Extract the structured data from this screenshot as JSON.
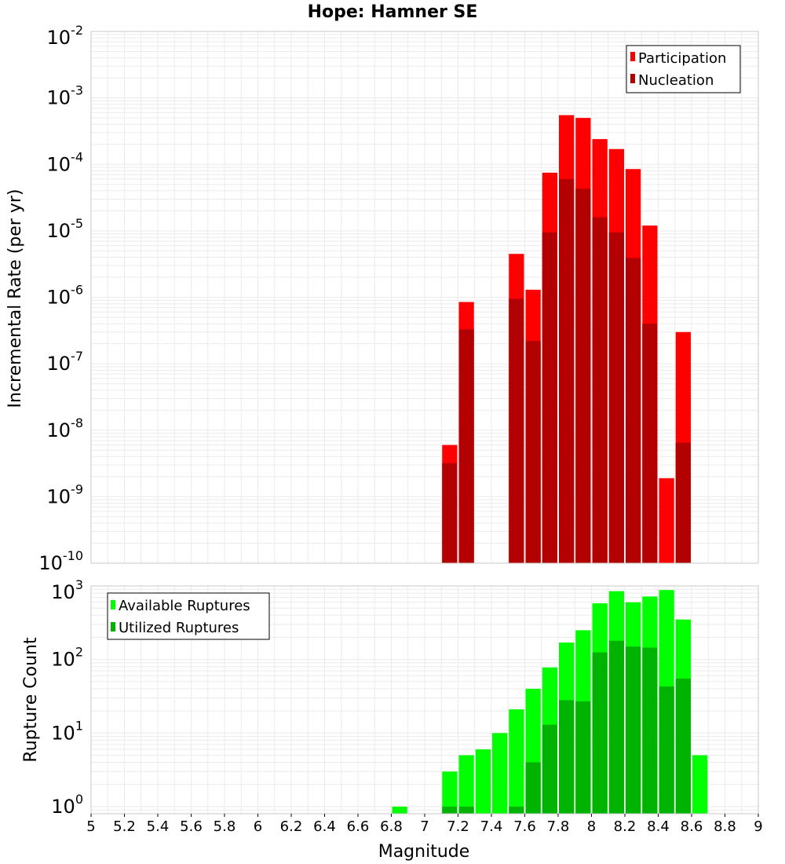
{
  "chart_data": [
    {
      "type": "bar",
      "title": "Hope: Hamner SE",
      "ylabel": "Incremental Rate (per yr)",
      "xlabel": "",
      "xlim": [
        5,
        9
      ],
      "ylim": [
        1e-10,
        0.01
      ],
      "yscale": "log",
      "legend": {
        "position": "top-right",
        "entries": [
          "Participation",
          "Nucleation"
        ]
      },
      "colors": {
        "Participation": "#ff0000",
        "Nucleation": "#b30000"
      },
      "bin_width": 0.1,
      "series": [
        {
          "name": "Participation",
          "x": [
            7.15,
            7.25,
            7.55,
            7.65,
            7.75,
            7.85,
            7.95,
            8.05,
            8.15,
            8.25,
            8.35,
            8.45,
            8.55
          ],
          "values": [
            6e-09,
            8.5e-07,
            4.5e-06,
            1.3e-06,
            7.5e-05,
            0.00055,
            0.0005,
            0.00024,
            0.00017,
            8.5e-05,
            1.2e-05,
            1.9e-09,
            3e-07
          ]
        },
        {
          "name": "Nucleation",
          "x": [
            7.15,
            7.25,
            7.55,
            7.65,
            7.75,
            7.85,
            7.95,
            8.05,
            8.15,
            8.25,
            8.35,
            8.45,
            8.55
          ],
          "values": [
            3.2e-09,
            3.3e-07,
            9.5e-07,
            2.2e-07,
            9.5e-06,
            6e-05,
            4.3e-05,
            1.6e-05,
            9.5e-06,
            3.9e-06,
            4e-07,
            null,
            6.5e-09
          ]
        }
      ],
      "yticks": [
        {
          "base": "10",
          "exp": "-2"
        },
        {
          "base": "10",
          "exp": "-3"
        },
        {
          "base": "10",
          "exp": "-4"
        },
        {
          "base": "10",
          "exp": "-5"
        },
        {
          "base": "10",
          "exp": "-6"
        },
        {
          "base": "10",
          "exp": "-7"
        },
        {
          "base": "10",
          "exp": "-8"
        },
        {
          "base": "10",
          "exp": "-9"
        },
        {
          "base": "10",
          "exp": "-10"
        }
      ]
    },
    {
      "type": "bar",
      "title": "",
      "ylabel": "Rupture Count",
      "xlabel": "Magnitude",
      "xlim": [
        5,
        9
      ],
      "ylim": [
        0.8,
        1000
      ],
      "yscale": "log",
      "legend": {
        "position": "top-left",
        "entries": [
          "Available Ruptures",
          "Utilized Ruptures"
        ]
      },
      "colors": {
        "Available Ruptures": "#00ff00",
        "Utilized Ruptures": "#00b300"
      },
      "bin_width": 0.1,
      "series": [
        {
          "name": "Available Ruptures",
          "x": [
            6.85,
            7.15,
            7.25,
            7.35,
            7.45,
            7.55,
            7.65,
            7.75,
            7.85,
            7.95,
            8.05,
            8.15,
            8.25,
            8.35,
            8.45,
            8.55,
            8.65
          ],
          "values": [
            1,
            3,
            5,
            6,
            10,
            21,
            40,
            78,
            170,
            250,
            580,
            850,
            600,
            720,
            880,
            350,
            5
          ]
        },
        {
          "name": "Utilized Ruptures",
          "x": [
            7.15,
            7.25,
            7.55,
            7.65,
            7.75,
            7.85,
            7.95,
            8.05,
            8.15,
            8.25,
            8.35,
            8.45,
            8.55
          ],
          "values": [
            1,
            1,
            1,
            4,
            13,
            28,
            27,
            125,
            180,
            150,
            145,
            43,
            55
          ]
        }
      ],
      "yticks": [
        {
          "base": "10",
          "exp": "3"
        },
        {
          "base": "10",
          "exp": "2"
        },
        {
          "base": "10",
          "exp": "1"
        },
        {
          "base": "10",
          "exp": "0"
        }
      ],
      "xticks": [
        "5",
        "5.2",
        "5.4",
        "5.6",
        "5.8",
        "6",
        "6.2",
        "6.4",
        "6.6",
        "6.8",
        "7",
        "7.2",
        "7.4",
        "7.6",
        "7.8",
        "8",
        "8.2",
        "8.4",
        "8.6",
        "8.8",
        "9"
      ]
    }
  ]
}
